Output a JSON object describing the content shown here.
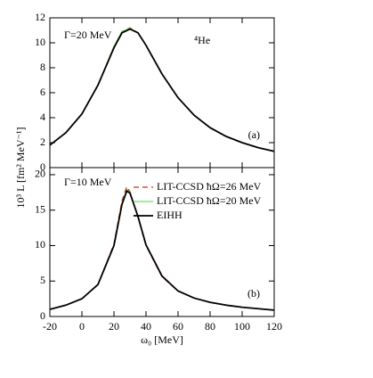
{
  "chart_data": [
    {
      "type": "line",
      "ylabel": "10³ L [fm² MeV⁻¹]",
      "annotations": [
        "Γ=20 MeV",
        "⁴He",
        "(a)"
      ],
      "x": [
        -20,
        -10,
        0,
        10,
        20,
        25,
        30,
        35,
        40,
        50,
        60,
        70,
        80,
        90,
        100,
        110,
        120
      ],
      "series": [
        {
          "color": "#e02020",
          "dash": true,
          "values": [
            1.8,
            2.8,
            4.3,
            6.6,
            9.7,
            10.9,
            11.2,
            10.8,
            9.8,
            7.5,
            5.6,
            4.2,
            3.2,
            2.5,
            2.0,
            1.6,
            1.3
          ]
        },
        {
          "color": "#66e066",
          "dash": false,
          "values": [
            1.8,
            2.8,
            4.3,
            6.6,
            9.7,
            10.9,
            11.15,
            10.8,
            9.8,
            7.5,
            5.6,
            4.2,
            3.2,
            2.5,
            2.0,
            1.6,
            1.3
          ]
        },
        {
          "color": "#000000",
          "dash": false,
          "values": [
            1.8,
            2.8,
            4.3,
            6.6,
            9.6,
            10.8,
            11.1,
            10.8,
            9.8,
            7.5,
            5.6,
            4.2,
            3.2,
            2.5,
            2.0,
            1.6,
            1.3
          ]
        }
      ],
      "xlim": [
        -20,
        120
      ],
      "xticks": [
        -20,
        0,
        20,
        40,
        60,
        80,
        100,
        120
      ],
      "ylim": [
        0,
        12
      ],
      "yticks": [
        0,
        2,
        4,
        6,
        8,
        10,
        12
      ]
    },
    {
      "type": "line",
      "xlabel": "ω₀ [MeV]",
      "annotations": [
        "Γ=10 MeV",
        "(b)"
      ],
      "x": [
        -20,
        -10,
        0,
        10,
        20,
        25,
        28,
        30,
        35,
        40,
        50,
        60,
        70,
        80,
        90,
        100,
        110,
        120
      ],
      "series": [
        {
          "name": "LIT-CCSD ħΩ=26 MeV",
          "color": "#e02020",
          "dash": true,
          "values": [
            1.0,
            1.6,
            2.5,
            4.5,
            10.2,
            16.3,
            18.3,
            17.6,
            14.0,
            10.0,
            5.6,
            3.6,
            2.6,
            2.0,
            1.6,
            1.3,
            1.1,
            0.9
          ]
        },
        {
          "name": "LIT-CCSD ħΩ=20 MeV",
          "color": "#66e066",
          "dash": false,
          "values": [
            1.0,
            1.6,
            2.5,
            4.5,
            10.0,
            16.0,
            17.9,
            17.5,
            14.1,
            10.1,
            5.7,
            3.6,
            2.6,
            2.0,
            1.6,
            1.3,
            1.1,
            0.9
          ]
        },
        {
          "name": "EIHH",
          "color": "#000000",
          "dash": false,
          "values": [
            1.0,
            1.6,
            2.5,
            4.5,
            10.0,
            15.8,
            17.7,
            17.4,
            14.1,
            10.1,
            5.7,
            3.6,
            2.6,
            2.0,
            1.6,
            1.3,
            1.1,
            0.9
          ]
        }
      ],
      "xlim": [
        -20,
        120
      ],
      "xticks": [
        -20,
        0,
        20,
        40,
        60,
        80,
        100,
        120
      ],
      "ylim": [
        0,
        21
      ],
      "yticks": [
        0,
        5,
        10,
        15,
        20
      ]
    }
  ]
}
